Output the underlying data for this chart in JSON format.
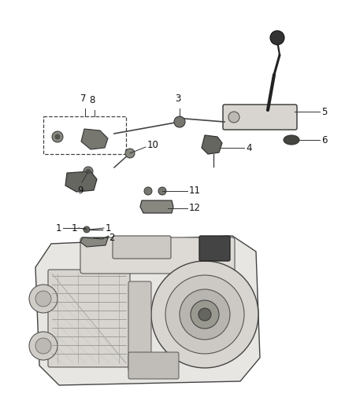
{
  "bg_color": "#ffffff",
  "fig_width": 4.38,
  "fig_height": 5.33,
  "dpi": 100,
  "line_color": "#1a1a1a",
  "label_color": "#1a1a1a",
  "label_fontsize": 8.5,
  "dark": "#1a1a1a",
  "mid": "#555555",
  "light_gray": "#cccccc",
  "lighter_gray": "#e8e8e8"
}
